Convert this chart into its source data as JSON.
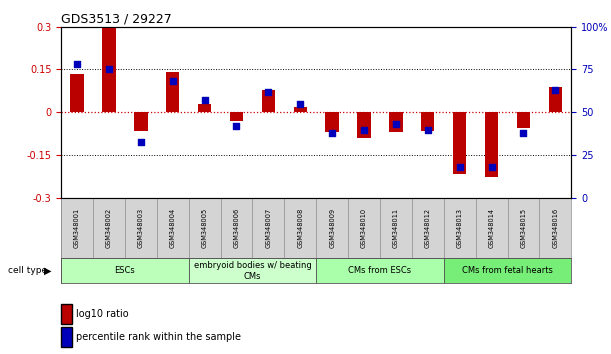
{
  "title": "GDS3513 / 29227",
  "samples": [
    "GSM348001",
    "GSM348002",
    "GSM348003",
    "GSM348004",
    "GSM348005",
    "GSM348006",
    "GSM348007",
    "GSM348008",
    "GSM348009",
    "GSM348010",
    "GSM348011",
    "GSM348012",
    "GSM348013",
    "GSM348014",
    "GSM348015",
    "GSM348016"
  ],
  "log10_ratio": [
    0.135,
    0.295,
    -0.065,
    0.14,
    0.03,
    -0.03,
    0.08,
    0.02,
    -0.07,
    -0.09,
    -0.07,
    -0.065,
    -0.215,
    -0.225,
    -0.055,
    0.09
  ],
  "percentile_rank": [
    78,
    75,
    33,
    68,
    57,
    42,
    62,
    55,
    38,
    40,
    43,
    40,
    18,
    18,
    38,
    63
  ],
  "ylim": [
    -0.3,
    0.3
  ],
  "bar_color": "#bb0000",
  "dot_color": "#0000bb",
  "hline_color": "#cc0000",
  "dotted_color": "#000000",
  "cell_groups": [
    {
      "label": "ESCs",
      "start": 0,
      "end": 3,
      "color": "#bbffbb"
    },
    {
      "label": "embryoid bodies w/ beating\nCMs",
      "start": 4,
      "end": 7,
      "color": "#ccffcc"
    },
    {
      "label": "CMs from ESCs",
      "start": 8,
      "end": 11,
      "color": "#aaffaa"
    },
    {
      "label": "CMs from fetal hearts",
      "start": 12,
      "end": 15,
      "color": "#77ee77"
    }
  ],
  "legend_red": "log10 ratio",
  "legend_blue": "percentile rank within the sample",
  "bg_color": "#ffffff",
  "right_ytick_color": "#0000bb",
  "left_ytick_color": "#cc0000",
  "cell_type_label": "cell type"
}
